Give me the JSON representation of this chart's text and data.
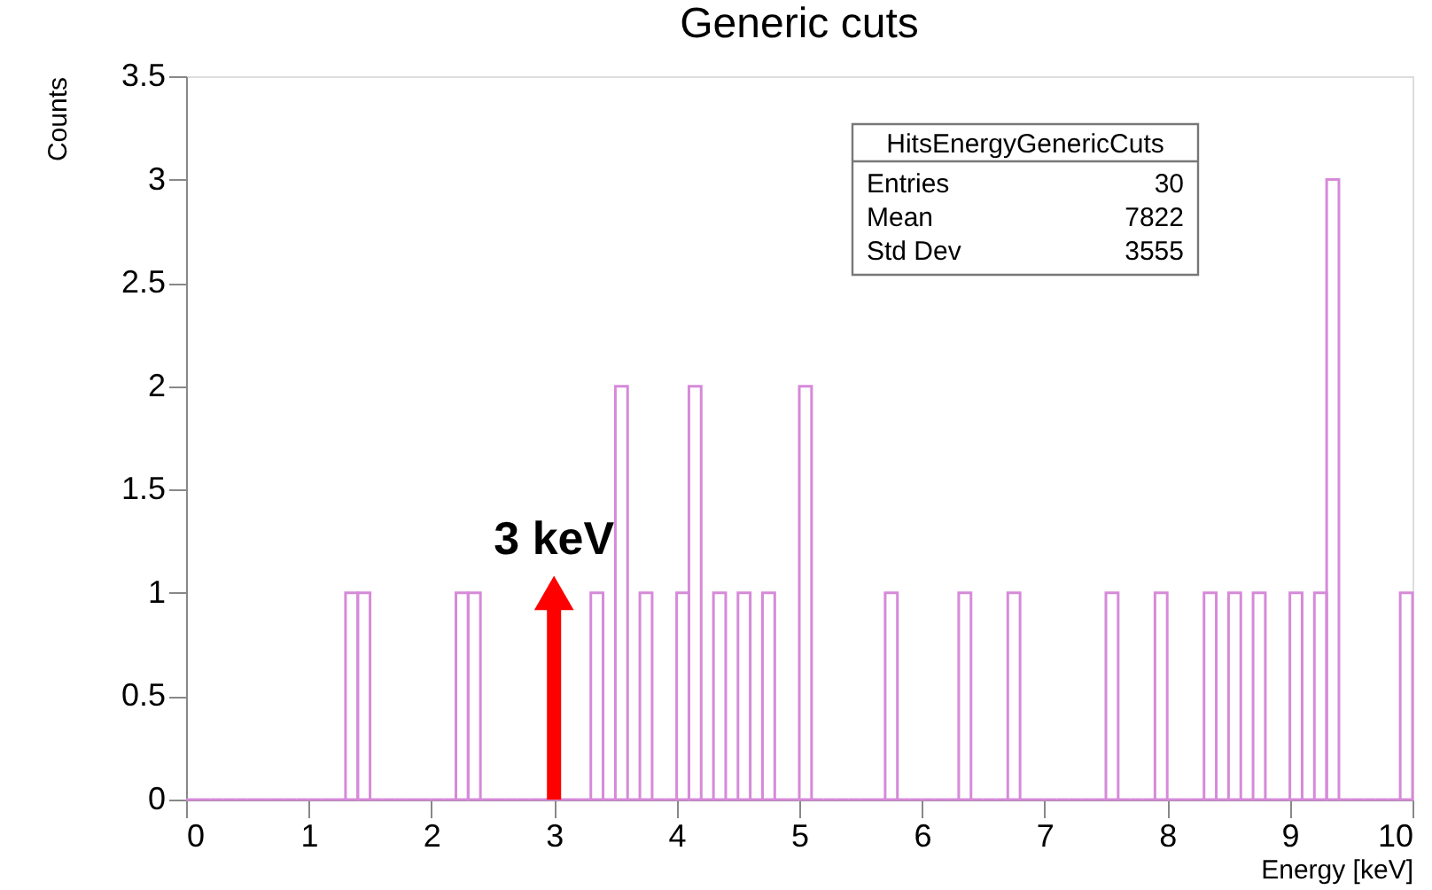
{
  "chart_data": {
    "type": "histogram",
    "title": "Generic cuts",
    "xlabel": "Energy [keV]",
    "ylabel": "Counts",
    "bins": [
      0,
      0.1,
      0.2,
      0.3,
      0.4,
      0.5,
      0.6,
      0.7,
      0.8,
      0.9,
      1,
      1.1,
      1.2,
      1.3,
      1.4,
      1.5,
      1.6,
      1.7,
      1.8,
      1.9,
      2,
      2.1,
      2.2,
      2.3,
      2.4,
      2.5,
      2.6,
      2.7,
      2.8,
      2.9,
      3,
      3.1,
      3.2,
      3.3,
      3.4,
      3.5,
      3.6,
      3.7,
      3.8,
      3.9,
      4,
      4.1,
      4.2,
      4.3,
      4.4,
      4.5,
      4.6,
      4.7,
      4.8,
      4.9,
      5,
      5.1,
      5.2,
      5.3,
      5.4,
      5.5,
      5.6,
      5.7,
      5.8,
      5.9,
      6,
      6.1,
      6.2,
      6.3,
      6.4,
      6.5,
      6.6,
      6.7,
      6.8,
      6.9,
      7,
      7.1,
      7.2,
      7.3,
      7.4,
      7.5,
      7.6,
      7.7,
      7.8,
      7.9,
      8,
      8.1,
      8.2,
      8.3,
      8.4,
      8.5,
      8.6,
      8.7,
      8.8,
      8.9,
      9,
      9.1,
      9.2,
      9.3,
      9.4,
      9.5,
      9.6,
      9.7,
      9.8,
      9.9,
      10
    ],
    "values": [
      0,
      0,
      0,
      0,
      0,
      0,
      0,
      0,
      0,
      0,
      0,
      0,
      0,
      1,
      1,
      0,
      0,
      0,
      0,
      0,
      0,
      0,
      1,
      1,
      0,
      0,
      0,
      0,
      0,
      0,
      0,
      0,
      0,
      1,
      0,
      2,
      0,
      1,
      0,
      0,
      1,
      2,
      0,
      1,
      0,
      1,
      0,
      1,
      0,
      0,
      2,
      0,
      0,
      0,
      0,
      0,
      0,
      1,
      0,
      0,
      0,
      0,
      0,
      1,
      0,
      0,
      0,
      1,
      0,
      0,
      0,
      0,
      0,
      0,
      0,
      1,
      0,
      0,
      0,
      1,
      0,
      0,
      0,
      1,
      0,
      1,
      0,
      1,
      0,
      0,
      1,
      0,
      1,
      3,
      0,
      0,
      0,
      0,
      0,
      1
    ],
    "color": "#d68ad9",
    "xlim": [
      0,
      10
    ],
    "xticks": [
      0,
      1,
      2,
      3,
      4,
      5,
      6,
      7,
      8,
      9,
      10
    ],
    "ylim": [
      0,
      3.5
    ],
    "yticks": [
      0,
      0.5,
      1,
      1.5,
      2,
      2.5,
      3,
      3.5
    ],
    "grid": false,
    "annotations": [
      {
        "text": "3 keV",
        "x": 3,
        "y": 1
      },
      "HitsEnergyGenericCuts",
      "Entries",
      "30",
      "Mean",
      "7822",
      "Std Dev",
      "3555"
    ]
  }
}
